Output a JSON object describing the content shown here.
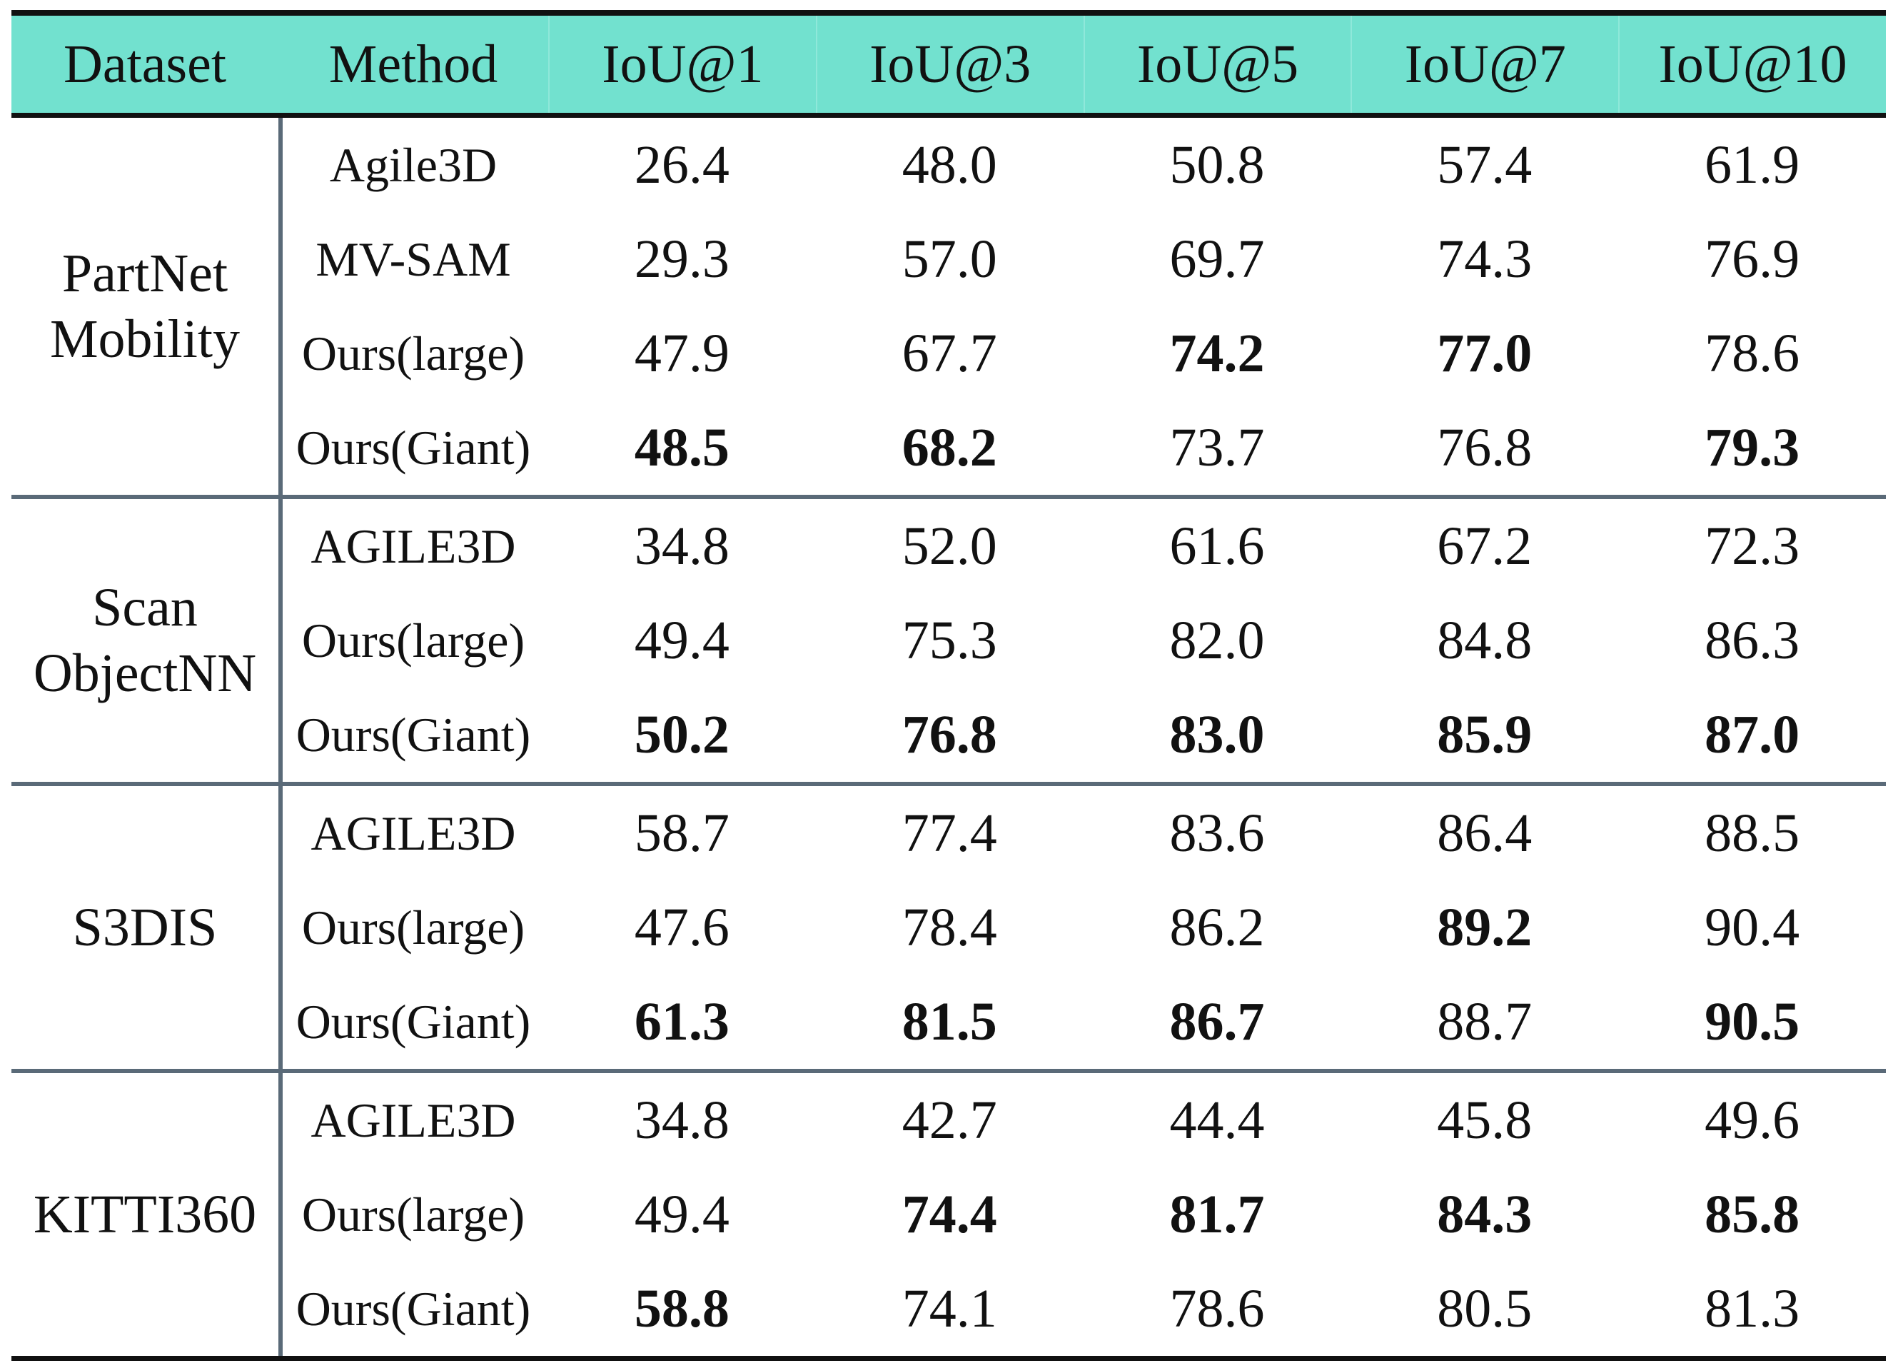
{
  "chart_data": {
    "type": "table",
    "columns": [
      "Dataset",
      "Method",
      "IoU@1",
      "IoU@3",
      "IoU@5",
      "IoU@7",
      "IoU@10"
    ],
    "groups": [
      {
        "dataset_lines": [
          "PartNet",
          "Mobility"
        ],
        "rows": [
          {
            "method": "Agile3D",
            "values": [
              "26.4",
              "48.0",
              "50.8",
              "57.4",
              "61.9"
            ],
            "bold": [
              false,
              false,
              false,
              false,
              false
            ]
          },
          {
            "method": "MV-SAM",
            "values": [
              "29.3",
              "57.0",
              "69.7",
              "74.3",
              "76.9"
            ],
            "bold": [
              false,
              false,
              false,
              false,
              false
            ]
          },
          {
            "method": "Ours(large)",
            "values": [
              "47.9",
              "67.7",
              "74.2",
              "77.0",
              "78.6"
            ],
            "bold": [
              false,
              false,
              true,
              true,
              false
            ]
          },
          {
            "method": "Ours(Giant)",
            "values": [
              "48.5",
              "68.2",
              "73.7",
              "76.8",
              "79.3"
            ],
            "bold": [
              true,
              true,
              false,
              false,
              true
            ]
          }
        ]
      },
      {
        "dataset_lines": [
          "Scan",
          "ObjectNN"
        ],
        "rows": [
          {
            "method": "AGILE3D",
            "values": [
              "34.8",
              "52.0",
              "61.6",
              "67.2",
              "72.3"
            ],
            "bold": [
              false,
              false,
              false,
              false,
              false
            ]
          },
          {
            "method": "Ours(large)",
            "values": [
              "49.4",
              "75.3",
              "82.0",
              "84.8",
              "86.3"
            ],
            "bold": [
              false,
              false,
              false,
              false,
              false
            ]
          },
          {
            "method": "Ours(Giant)",
            "values": [
              "50.2",
              "76.8",
              "83.0",
              "85.9",
              "87.0"
            ],
            "bold": [
              true,
              true,
              true,
              true,
              true
            ]
          }
        ]
      },
      {
        "dataset_lines": [
          "S3DIS"
        ],
        "rows": [
          {
            "method": "AGILE3D",
            "values": [
              "58.7",
              "77.4",
              "83.6",
              "86.4",
              "88.5"
            ],
            "bold": [
              false,
              false,
              false,
              false,
              false
            ]
          },
          {
            "method": "Ours(large)",
            "values": [
              "47.6",
              "78.4",
              "86.2",
              "89.2",
              "90.4"
            ],
            "bold": [
              false,
              false,
              false,
              true,
              false
            ]
          },
          {
            "method": "Ours(Giant)",
            "values": [
              "61.3",
              "81.5",
              "86.7",
              "88.7",
              "90.5"
            ],
            "bold": [
              true,
              true,
              true,
              false,
              true
            ]
          }
        ]
      },
      {
        "dataset_lines": [
          "KITTI360"
        ],
        "rows": [
          {
            "method": "AGILE3D",
            "values": [
              "34.8",
              "42.7",
              "44.4",
              "45.8",
              "49.6"
            ],
            "bold": [
              false,
              false,
              false,
              false,
              false
            ]
          },
          {
            "method": "Ours(large)",
            "values": [
              "49.4",
              "74.4",
              "81.7",
              "84.3",
              "85.8"
            ],
            "bold": [
              false,
              true,
              true,
              true,
              true
            ]
          },
          {
            "method": "Ours(Giant)",
            "values": [
              "58.8",
              "74.1",
              "78.6",
              "80.5",
              "81.3"
            ],
            "bold": [
              true,
              false,
              false,
              false,
              false
            ]
          }
        ]
      }
    ]
  },
  "colors": {
    "header_background": "#72e1cf",
    "group_separator": "#5a6a78",
    "rule": "#111111"
  }
}
